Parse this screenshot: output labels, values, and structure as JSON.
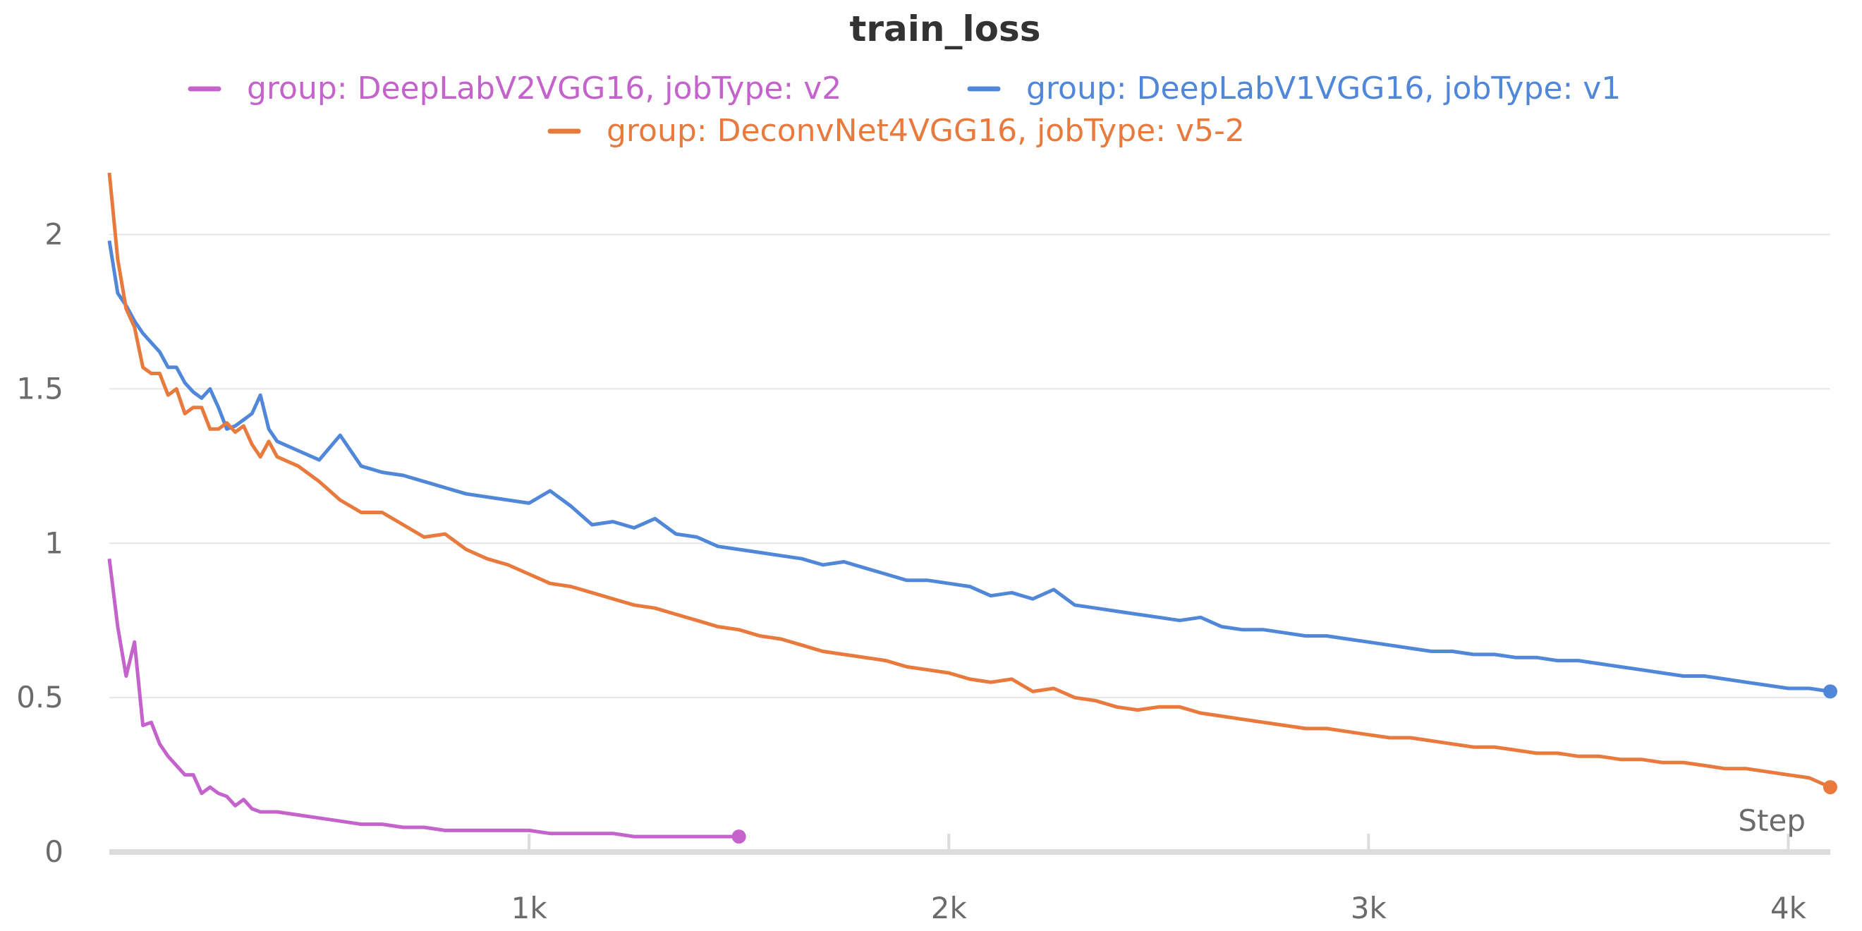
{
  "chart_data": {
    "type": "line",
    "title": "train_loss",
    "xlabel": "Step",
    "ylabel": "",
    "xlim": [
      0,
      4100
    ],
    "ylim": [
      0,
      2.2
    ],
    "x_ticks": [
      1000,
      2000,
      3000,
      4000
    ],
    "x_tick_labels": [
      "1k",
      "2k",
      "3k",
      "4k"
    ],
    "y_ticks": [
      0,
      0.5,
      1,
      1.5,
      2
    ],
    "y_tick_labels": [
      "0",
      "0.5",
      "1",
      "1.5",
      "2"
    ],
    "grid": true,
    "legend_position": "top",
    "series": [
      {
        "name": "group: DeepLabV2VGG16, jobType: v2",
        "color": "#c463cc",
        "x": [
          0,
          20,
          40,
          60,
          80,
          100,
          120,
          140,
          160,
          180,
          200,
          220,
          240,
          260,
          280,
          300,
          320,
          340,
          360,
          380,
          400,
          450,
          500,
          550,
          600,
          650,
          700,
          750,
          800,
          850,
          900,
          950,
          1000,
          1050,
          1100,
          1150,
          1200,
          1250,
          1300,
          1350,
          1400,
          1450,
          1500
        ],
        "y": [
          0.95,
          0.73,
          0.57,
          0.68,
          0.41,
          0.42,
          0.35,
          0.31,
          0.28,
          0.25,
          0.25,
          0.19,
          0.21,
          0.19,
          0.18,
          0.15,
          0.17,
          0.14,
          0.13,
          0.13,
          0.13,
          0.12,
          0.11,
          0.1,
          0.09,
          0.09,
          0.08,
          0.08,
          0.07,
          0.07,
          0.07,
          0.07,
          0.07,
          0.06,
          0.06,
          0.06,
          0.06,
          0.05,
          0.05,
          0.05,
          0.05,
          0.05,
          0.05
        ]
      },
      {
        "name": "group: DeepLabV1VGG16, jobType: v1",
        "color": "#5087d8",
        "x": [
          0,
          20,
          40,
          60,
          80,
          100,
          120,
          140,
          160,
          180,
          200,
          220,
          240,
          260,
          280,
          300,
          320,
          340,
          360,
          380,
          400,
          450,
          500,
          550,
          600,
          650,
          700,
          750,
          800,
          850,
          900,
          950,
          1000,
          1050,
          1100,
          1150,
          1200,
          1250,
          1300,
          1350,
          1400,
          1450,
          1500,
          1550,
          1600,
          1650,
          1700,
          1750,
          1800,
          1850,
          1900,
          1950,
          2000,
          2050,
          2100,
          2150,
          2200,
          2250,
          2300,
          2350,
          2400,
          2450,
          2500,
          2550,
          2600,
          2650,
          2700,
          2750,
          2800,
          2850,
          2900,
          2950,
          3000,
          3050,
          3100,
          3150,
          3200,
          3250,
          3300,
          3350,
          3400,
          3450,
          3500,
          3550,
          3600,
          3650,
          3700,
          3750,
          3800,
          3850,
          3900,
          3950,
          4000,
          4050,
          4100
        ],
        "y": [
          1.98,
          1.81,
          1.77,
          1.72,
          1.68,
          1.65,
          1.62,
          1.57,
          1.57,
          1.52,
          1.49,
          1.47,
          1.5,
          1.44,
          1.37,
          1.38,
          1.4,
          1.42,
          1.48,
          1.37,
          1.33,
          1.3,
          1.27,
          1.35,
          1.25,
          1.23,
          1.22,
          1.2,
          1.18,
          1.16,
          1.15,
          1.14,
          1.13,
          1.17,
          1.12,
          1.06,
          1.07,
          1.05,
          1.08,
          1.03,
          1.02,
          0.99,
          0.98,
          0.97,
          0.96,
          0.95,
          0.93,
          0.94,
          0.92,
          0.9,
          0.88,
          0.88,
          0.87,
          0.86,
          0.83,
          0.84,
          0.82,
          0.85,
          0.8,
          0.79,
          0.78,
          0.77,
          0.76,
          0.75,
          0.76,
          0.73,
          0.72,
          0.72,
          0.71,
          0.7,
          0.7,
          0.69,
          0.68,
          0.67,
          0.66,
          0.65,
          0.65,
          0.64,
          0.64,
          0.63,
          0.63,
          0.62,
          0.62,
          0.61,
          0.6,
          0.59,
          0.58,
          0.57,
          0.57,
          0.56,
          0.55,
          0.54,
          0.53,
          0.53,
          0.52
        ]
      },
      {
        "name": "group: DeconvNet4VGG16, jobType: v5-2",
        "color": "#e87a3d",
        "x": [
          0,
          20,
          40,
          60,
          80,
          100,
          120,
          140,
          160,
          180,
          200,
          220,
          240,
          260,
          280,
          300,
          320,
          340,
          360,
          380,
          400,
          450,
          500,
          550,
          600,
          650,
          700,
          750,
          800,
          850,
          900,
          950,
          1000,
          1050,
          1100,
          1150,
          1200,
          1250,
          1300,
          1350,
          1400,
          1450,
          1500,
          1550,
          1600,
          1650,
          1700,
          1750,
          1800,
          1850,
          1900,
          1950,
          2000,
          2050,
          2100,
          2150,
          2200,
          2250,
          2300,
          2350,
          2400,
          2450,
          2500,
          2550,
          2600,
          2650,
          2700,
          2750,
          2800,
          2850,
          2900,
          2950,
          3000,
          3050,
          3100,
          3150,
          3200,
          3250,
          3300,
          3350,
          3400,
          3450,
          3500,
          3550,
          3600,
          3650,
          3700,
          3750,
          3800,
          3850,
          3900,
          3950,
          4000,
          4050,
          4100
        ],
        "y": [
          2.2,
          1.92,
          1.76,
          1.7,
          1.57,
          1.55,
          1.55,
          1.48,
          1.5,
          1.42,
          1.44,
          1.44,
          1.37,
          1.37,
          1.39,
          1.36,
          1.38,
          1.32,
          1.28,
          1.33,
          1.28,
          1.25,
          1.2,
          1.14,
          1.1,
          1.1,
          1.06,
          1.02,
          1.03,
          0.98,
          0.95,
          0.93,
          0.9,
          0.87,
          0.86,
          0.84,
          0.82,
          0.8,
          0.79,
          0.77,
          0.75,
          0.73,
          0.72,
          0.7,
          0.69,
          0.67,
          0.65,
          0.64,
          0.63,
          0.62,
          0.6,
          0.59,
          0.58,
          0.56,
          0.55,
          0.56,
          0.52,
          0.53,
          0.5,
          0.49,
          0.47,
          0.46,
          0.47,
          0.47,
          0.45,
          0.44,
          0.43,
          0.42,
          0.41,
          0.4,
          0.4,
          0.39,
          0.38,
          0.37,
          0.37,
          0.36,
          0.35,
          0.34,
          0.34,
          0.33,
          0.32,
          0.32,
          0.31,
          0.31,
          0.3,
          0.3,
          0.29,
          0.29,
          0.28,
          0.27,
          0.27,
          0.26,
          0.25,
          0.24,
          0.21
        ]
      }
    ]
  }
}
